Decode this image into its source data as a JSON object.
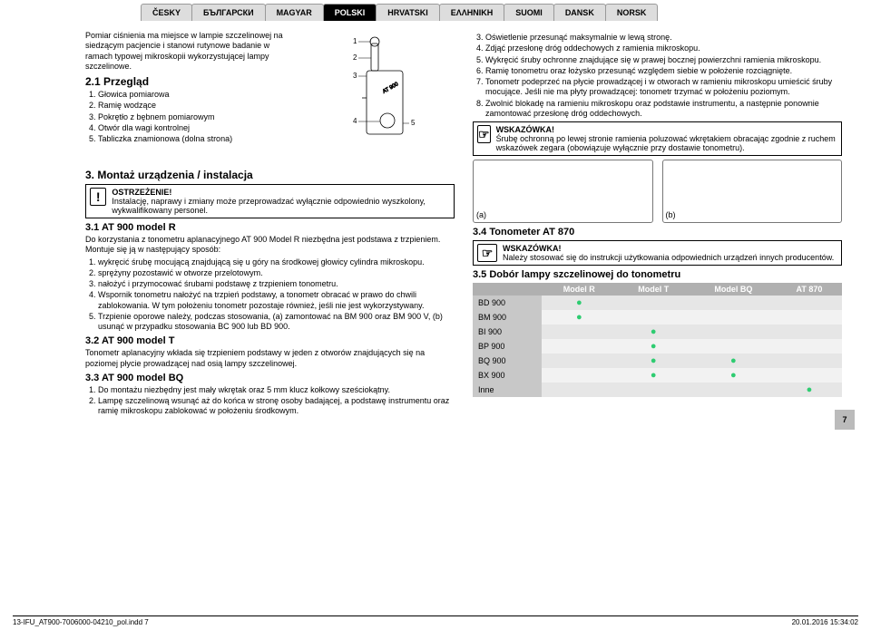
{
  "tabs": [
    "ČESKY",
    "БЪЛГАРСКИ",
    "MAGYAR",
    "POLSKI",
    "HRVATSKI",
    "ΕΛΛΗΝΙΚΗ",
    "SUOMI",
    "DANSK",
    "NORSK"
  ],
  "activeTab": 3,
  "left": {
    "intro": "Pomiar ciśnienia ma miejsce w lampie szczelinowej na siedzącym pacjencie i stanowi rutynowe badanie w ramach typowej mikroskopii wykorzystującej lampy szczelinowe.",
    "s21_title": "2.1  Przegląd",
    "s21_items": [
      "Głowica pomiarowa",
      "Ramię wodzące",
      "Pokrętło z bębnem pomiarowym",
      "Otwór dla wagi kontrolnej",
      "Tabliczka znamionowa (dolna strona)"
    ],
    "s3_title": "3.   Montaż urządzenia / instalacja",
    "warn1_title": "OSTRZEŻENIE!",
    "warn1_body": "Instalację, naprawy i zmiany może przeprowadzać wyłącznie odpowiednio wyszkolony, wykwalifikowany personel.",
    "s31_title": "3.1  AT 900 model R",
    "s31_intro": "Do korzystania z tonometru aplanacyjnego AT 900 Model R niezbędna jest podstawa z trzpieniem. Montuje się ją w następujący sposób:",
    "s31_items": [
      "wykręcić śrubę mocującą znajdującą się u góry na środkowej głowicy cylindra mikroskopu.",
      "sprężyny pozostawić w otworze przelotowym.",
      "nałożyć i przymocować śrubami podstawę z trzpieniem tonometru.",
      "Wspornik tonometru nałożyć na trzpień podstawy, a tonometr obracać w prawo do chwili zablokowania. W tym położeniu tonometr pozostaje również, jeśli nie jest wykorzystywany.",
      "Trzpienie oporowe należy, podczas stosowania, (a) zamontować na BM 900 oraz BM 900 V, (b) usunąć w przypadku stosowania BC 900 lub BD 900."
    ],
    "s32_title": "3.2  AT 900 model T",
    "s32_body": "Tonometr aplanacyjny wkłada się trzpieniem podstawy w jeden z otworów znajdujących się na poziomej płycie prowadzącej nad osią lampy szczelinowej.",
    "s33_title": "3.3  AT 900 model BQ",
    "s33_items": [
      "Do montażu niezbędny jest mały wkrętak oraz 5 mm klucz kołkowy sześciokątny.",
      "Lampę szczelinową wsunąć aż do końca w stronę osoby badającej, a podstawę instrumentu oraz ramię mikroskopu zablokować w położeniu środkowym."
    ]
  },
  "right": {
    "top_items": [
      "Oświetlenie przesunąć maksymalnie w lewą stronę.",
      "Zdjąć przesłonę dróg oddechowych z ramienia mikroskopu.",
      "Wykręcić śruby ochronne znajdujące się w prawej bocznej powierzchni ramienia mikroskopu.",
      "Ramię tonometru oraz łożysko przesunąć względem siebie w położenie rozciągnięte.",
      "Tonometr podeprzeć na płycie prowadzącej i w otworach w ramieniu mikroskopu umieścić śruby mocujące. Jeśli nie ma płyty prowadzącej: tonometr trzymać w położeniu poziomym.",
      "Zwolnić blokadę na ramieniu mikroskopu oraz podstawie instrumentu, a następnie ponownie zamontować przesłonę dróg oddechowych."
    ],
    "tip1_title": "WSKAZÓWKA!",
    "tip1_body": "Śrubę ochronną po lewej stronie ramienia poluzować wkrętakiem obracając zgodnie z ruchem wskazówek zegara (obowiązuje wyłącznie przy dostawie tonometru).",
    "illus_a": "(a)",
    "illus_b": "(b)",
    "s34_title": "3.4  Tonometer AT 870",
    "tip2_title": "WSKAZÓWKA!",
    "tip2_body": "Należy stosować się do instrukcji użytkowania odpowiednich urządzeń innych producentów.",
    "s35_title": "3.5  Dobór lampy szczelinowej do tonometru",
    "table_head": [
      "",
      "Model R",
      "Model T",
      "Model BQ",
      "AT 870"
    ],
    "table_rows": [
      [
        "BD 900",
        "●",
        "",
        "",
        ""
      ],
      [
        "BM 900",
        "●",
        "",
        "",
        ""
      ],
      [
        "BI 900",
        "",
        "●",
        "",
        ""
      ],
      [
        "BP 900",
        "",
        "●",
        "",
        ""
      ],
      [
        "BQ 900",
        "",
        "●",
        "●",
        ""
      ],
      [
        "BX 900",
        "",
        "●",
        "●",
        ""
      ],
      [
        "Inne",
        "",
        "",
        "",
        "●"
      ]
    ]
  },
  "pagenum": "7",
  "footer_left": "13-IFU_AT900-7006000-04210_pol.indd   7",
  "footer_right": "20.01.2016   15:34:02"
}
